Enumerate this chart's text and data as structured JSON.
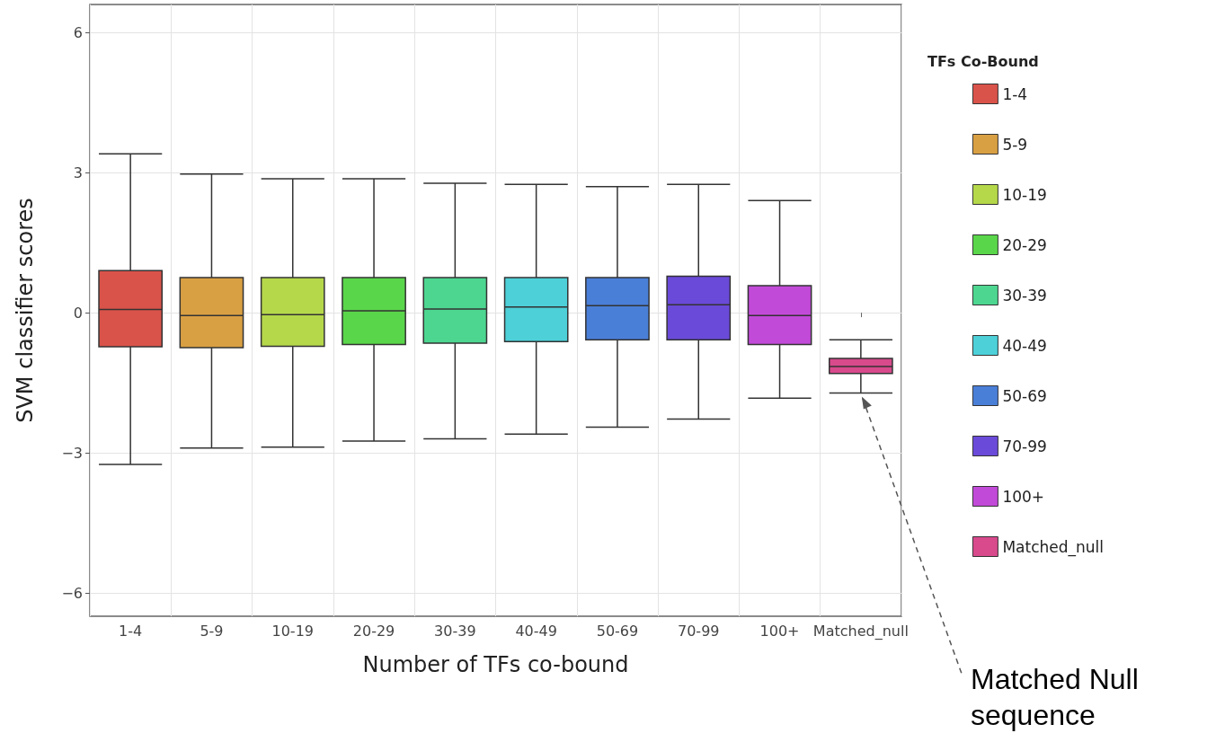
{
  "chart_data": {
    "type": "box",
    "xlabel": "Number of TFs co-bound",
    "ylabel": "SVM classifier scores",
    "legend_title": "TFs Co-Bound",
    "categories": [
      "1-4",
      "5-9",
      "10-19",
      "20-29",
      "30-39",
      "40-49",
      "50-69",
      "70-99",
      "100+",
      "Matched_null"
    ],
    "ylim": [
      -6.5,
      6.6
    ],
    "yticks": [
      {
        "value": -6,
        "label": "−6"
      },
      {
        "value": -3,
        "label": "−3"
      },
      0,
      3,
      6
    ],
    "grid": true,
    "legend": "right",
    "series": [
      {
        "name": "1-4",
        "color": "#d9534a",
        "boxes": [
          {
            "low": -3.25,
            "q1": -0.73,
            "median": 0.07,
            "q3": 0.9,
            "high": 3.4
          },
          null,
          null,
          null,
          null,
          null,
          null,
          null,
          null,
          null
        ]
      },
      {
        "name": "5-9",
        "color": "#d9a043",
        "boxes": [
          null,
          {
            "low": -2.9,
            "q1": -0.75,
            "median": -0.06,
            "q3": 0.75,
            "high": 2.97
          },
          null,
          null,
          null,
          null,
          null,
          null,
          null,
          null
        ]
      },
      {
        "name": "10-19",
        "color": "#b5d84a",
        "boxes": [
          null,
          null,
          {
            "low": -2.88,
            "q1": -0.72,
            "median": -0.04,
            "q3": 0.75,
            "high": 2.87
          },
          null,
          null,
          null,
          null,
          null,
          null,
          null
        ]
      },
      {
        "name": "20-29",
        "color": "#5ad64a",
        "boxes": [
          null,
          null,
          null,
          {
            "low": -2.75,
            "q1": -0.68,
            "median": 0.04,
            "q3": 0.75,
            "high": 2.87
          },
          null,
          null,
          null,
          null,
          null,
          null
        ]
      },
      {
        "name": "30-39",
        "color": "#4dd690",
        "boxes": [
          null,
          null,
          null,
          null,
          {
            "low": -2.7,
            "q1": -0.65,
            "median": 0.08,
            "q3": 0.75,
            "high": 2.77
          },
          null,
          null,
          null,
          null,
          null
        ]
      },
      {
        "name": "40-49",
        "color": "#4dd0d8",
        "boxes": [
          null,
          null,
          null,
          null,
          null,
          {
            "low": -2.6,
            "q1": -0.62,
            "median": 0.12,
            "q3": 0.75,
            "high": 2.75
          },
          null,
          null,
          null,
          null
        ]
      },
      {
        "name": "50-69",
        "color": "#4a7fd8",
        "boxes": [
          null,
          null,
          null,
          null,
          null,
          null,
          {
            "low": -2.45,
            "q1": -0.58,
            "median": 0.15,
            "q3": 0.75,
            "high": 2.7
          },
          null,
          null,
          null
        ]
      },
      {
        "name": "70-99",
        "color": "#6a4ad8",
        "boxes": [
          null,
          null,
          null,
          null,
          null,
          null,
          null,
          {
            "low": -2.28,
            "q1": -0.58,
            "median": 0.17,
            "q3": 0.78,
            "high": 2.75
          },
          null,
          null
        ]
      },
      {
        "name": "100+",
        "color": "#c24ad8",
        "boxes": [
          null,
          null,
          null,
          null,
          null,
          null,
          null,
          null,
          {
            "low": -1.83,
            "q1": -0.68,
            "median": -0.06,
            "q3": 0.58,
            "high": 2.4
          },
          null
        ]
      },
      {
        "name": "Matched_null",
        "color": "#d84a8c",
        "boxes": [
          null,
          null,
          null,
          null,
          null,
          null,
          null,
          null,
          null,
          {
            "low": -1.72,
            "q1": -1.3,
            "median": -1.15,
            "q3": -0.98,
            "high": -0.58
          }
        ]
      }
    ],
    "annotations": [
      {
        "text": "Matched Null sequence",
        "x": "Matched_null",
        "y": -1.72
      }
    ]
  }
}
